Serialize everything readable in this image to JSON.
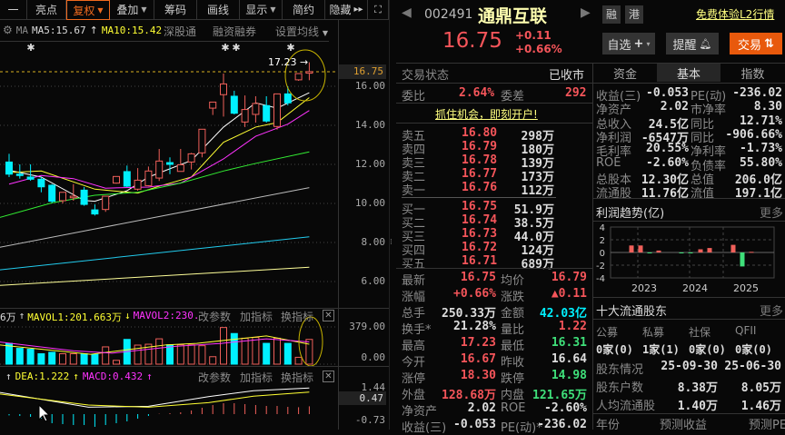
{
  "toolbar": {
    "items": [
      {
        "label": "一"
      },
      {
        "label": "亮点"
      },
      {
        "label": "复权",
        "dropdown": true,
        "selected": true
      },
      {
        "label": "叠加",
        "dropdown": true
      },
      {
        "label": "筹码"
      },
      {
        "label": "画线"
      },
      {
        "label": "显示",
        "dropdown": true
      },
      {
        "label": "简约"
      },
      {
        "label": "隐藏",
        "suffix": "▸▸"
      }
    ],
    "fullscreen_icon": "expand-icon"
  },
  "ma_bar": {
    "ma_label": "MA",
    "ma5": "MA5:15.67",
    "ma5_arrow": "↑",
    "ma10": "MA10:15.42",
    "links": [
      "深股通",
      "融资融券",
      "设置均线"
    ]
  },
  "price_chart": {
    "high_marker": "17.23",
    "current_price_tag": "16.75",
    "axis_ticks": [
      "16.00",
      "14.00",
      "12.00",
      "10.00",
      "8.00",
      "6.00"
    ]
  },
  "volume_panel": {
    "left_label": "6万",
    "arrow1": "↑",
    "mavol1": "MAVOL1:201.663万",
    "arrow2": "↓",
    "mavol2": "MAVOL2:230.",
    "actions": [
      "改参数",
      "加指标",
      "换指标"
    ],
    "axis_ticks": [
      "379.00",
      "0.00"
    ]
  },
  "macd_panel": {
    "arrow0": "↑",
    "dea": "DEA:1.222",
    "arrow1": "↑",
    "macd": "MACD:0.432",
    "arrow2": "↑",
    "actions": [
      "改参数",
      "加指标",
      "换指标"
    ],
    "axis_ticks": [
      "1.44",
      "0.47",
      "-0.73"
    ]
  },
  "chart_data": {
    "type": "candlestick",
    "candles": [
      [
        12.12,
        12.54,
        11.35,
        11.5
      ],
      [
        11.5,
        12.0,
        11.27,
        11.43
      ],
      [
        11.35,
        12.0,
        11.16,
        11.24
      ],
      [
        11.24,
        11.35,
        10.57,
        10.85
      ],
      [
        10.93,
        10.99,
        10.03,
        10.11
      ],
      [
        10.14,
        10.57,
        10.0,
        10.57
      ],
      [
        10.29,
        10.99,
        10.14,
        10.37
      ],
      [
        10.68,
        10.84,
        9.88,
        9.95
      ],
      [
        9.67,
        9.95,
        9.38,
        9.46
      ],
      [
        9.69,
        10.37,
        9.57,
        10.37
      ],
      [
        11.04,
        11.38,
        11.01,
        11.38
      ],
      [
        11.63,
        11.94,
        10.84,
        10.88
      ],
      [
        10.73,
        11.81,
        10.65,
        11.19
      ],
      [
        10.91,
        11.89,
        10.88,
        11.66
      ],
      [
        11.3,
        12.79,
        11.15,
        12.17
      ],
      [
        12.09,
        12.36,
        11.5,
        12.0
      ],
      [
        11.64,
        12.79,
        11.64,
        11.98
      ],
      [
        12.12,
        12.59,
        11.74,
        12.54
      ],
      [
        12.59,
        13.8,
        12.36,
        13.8
      ],
      [
        14.88,
        15.19,
        14.53,
        15.19
      ],
      [
        15.57,
        16.65,
        14.45,
        16.12
      ],
      [
        15.49,
        15.77,
        14.56,
        14.62
      ],
      [
        14.17,
        15.53,
        13.91,
        14.81
      ],
      [
        14.56,
        15.49,
        14.14,
        15.12
      ],
      [
        15.01,
        15.49,
        14.14,
        14.22
      ],
      [
        13.94,
        15.61,
        13.78,
        15.61
      ],
      [
        15.61,
        16.0,
        15.02,
        15.15
      ],
      [
        16.33,
        16.65,
        16.28,
        16.65
      ],
      [
        16.67,
        17.23,
        16.31,
        16.75
      ]
    ],
    "candle_fields": [
      "open",
      "high",
      "low",
      "close"
    ],
    "ma_lines": [
      {
        "name": "MA5",
        "color": "#ffffff",
        "points": [
          [
            1,
            11.7
          ],
          [
            4,
            11.35
          ],
          [
            8,
            10.15
          ],
          [
            9,
            10.11
          ],
          [
            12,
            10.65
          ],
          [
            14,
            11.35
          ],
          [
            18,
            12.2
          ],
          [
            21,
            13.91
          ],
          [
            24,
            15.15
          ],
          [
            26,
            14.88
          ],
          [
            29,
            15.67
          ]
        ]
      },
      {
        "name": "MA10",
        "color": "#ffff33",
        "points": [
          [
            1,
            11.58
          ],
          [
            4,
            11.66
          ],
          [
            9,
            10.73
          ],
          [
            13,
            10.53
          ],
          [
            15,
            10.88
          ],
          [
            18,
            11.35
          ],
          [
            21,
            13.13
          ],
          [
            24,
            13.91
          ],
          [
            26,
            14.14
          ],
          [
            29,
            15.42
          ]
        ]
      },
      {
        "color": "#ff33ff",
        "points": [
          [
            1,
            10.99
          ],
          [
            4,
            11.43
          ],
          [
            7,
            11.27
          ],
          [
            10,
            10.78
          ],
          [
            14,
            10.84
          ],
          [
            17,
            11.04
          ],
          [
            21,
            12.28
          ],
          [
            24,
            13.44
          ],
          [
            27,
            14.06
          ],
          [
            29,
            14.76
          ]
        ]
      },
      {
        "color": "#33ee33",
        "points": [
          [
            0,
            9.26
          ],
          [
            5,
            10.03
          ],
          [
            9,
            10.42
          ],
          [
            13,
            10.57
          ],
          [
            17,
            11.04
          ],
          [
            21,
            11.66
          ],
          [
            24,
            12.05
          ],
          [
            29,
            12.64
          ]
        ]
      },
      {
        "color": "#bbbbbb",
        "points": [
          [
            0,
            7.74
          ],
          [
            29,
            10.81
          ]
        ]
      },
      {
        "color": "#22ccee",
        "points": [
          [
            0,
            6.59
          ],
          [
            29,
            8.29
          ]
        ]
      },
      {
        "color": "#ffff99",
        "points": [
          [
            0,
            5.8
          ],
          [
            29,
            6.73
          ]
        ]
      }
    ],
    "ylim": [
      5.6,
      17.6
    ],
    "volume": [
      212,
      161,
      152,
      106,
      121,
      106,
      106,
      106,
      100,
      176,
      39,
      252,
      194,
      203,
      258,
      197,
      197,
      197,
      188,
      76,
      373,
      312,
      264,
      273,
      212,
      264,
      212,
      70,
      252
    ],
    "volume_ylim": [
      0,
      379
    ],
    "mavol1": [
      [
        0,
        197
      ],
      [
        8.6,
        100
      ],
      [
        15.7,
        197
      ],
      [
        18.5,
        212
      ],
      [
        25,
        288
      ],
      [
        29,
        203
      ]
    ],
    "mavol2": [
      [
        0,
        227
      ],
      [
        7,
        136
      ],
      [
        10.6,
        112
      ],
      [
        16.6,
        182
      ],
      [
        20.8,
        212
      ],
      [
        25,
        258
      ],
      [
        29,
        227
      ]
    ],
    "dif": [
      [
        0,
        1.21
      ],
      [
        8.4,
        0.38
      ],
      [
        14,
        0.43
      ],
      [
        19.6,
        0.96
      ],
      [
        23.8,
        1.29
      ],
      [
        29,
        1.44
      ]
    ],
    "dea": [
      [
        0,
        1.12
      ],
      [
        8.4,
        0.5
      ],
      [
        14,
        0.38
      ],
      [
        19.6,
        0.63
      ],
      [
        23.8,
        0.99
      ],
      [
        29,
        1.21
      ]
    ],
    "macd_hist": [
      -0.07,
      -0.1,
      -0.15,
      -0.25,
      -0.5,
      -0.55,
      -0.6,
      -0.6,
      -0.7,
      -0.6,
      -0.5,
      -0.4,
      -0.25,
      -0.1,
      0.02,
      0.05,
      0.1,
      0.2,
      0.35,
      0.5,
      0.6,
      0.6,
      0.55,
      0.5,
      0.45,
      0.45,
      0.4,
      0.38,
      0.43
    ]
  },
  "quote": {
    "code": "002491",
    "name": "通鼎互联",
    "tags": [
      "融",
      "港"
    ],
    "l2_link": "免费体验L2行情",
    "price": "16.75",
    "change": "+0.11",
    "change_pct": "+0.66%",
    "buttons": {
      "watchlist": "自选",
      "alert": "提醒",
      "trade": "交易"
    },
    "trade_color": "#e8590c"
  },
  "status": {
    "label": "交易状态",
    "value": "已收市"
  },
  "tabs": [
    {
      "label": "资金"
    },
    {
      "label": "基本",
      "active": true
    },
    {
      "label": "指数"
    }
  ],
  "order_book": {
    "wb_label": "委比",
    "wb": "2.64%",
    "wc_label": "委差",
    "wc": "292",
    "promo": "抓住机会，即刻开户!",
    "asks": [
      {
        "label": "卖五",
        "price": "16.80",
        "vol": "298万"
      },
      {
        "label": "卖四",
        "price": "16.79",
        "vol": "180万"
      },
      {
        "label": "卖三",
        "price": "16.78",
        "vol": "139万"
      },
      {
        "label": "卖二",
        "price": "16.77",
        "vol": "173万"
      },
      {
        "label": "卖一",
        "price": "16.76",
        "vol": "112万"
      }
    ],
    "bids": [
      {
        "label": "买一",
        "price": "16.75",
        "vol": "51.9万"
      },
      {
        "label": "买二",
        "price": "16.74",
        "vol": "38.5万"
      },
      {
        "label": "买三",
        "price": "16.73",
        "vol": "44.0万"
      },
      {
        "label": "买四",
        "price": "16.72",
        "vol": "124万"
      },
      {
        "label": "买五",
        "price": "16.71",
        "vol": "689万"
      }
    ]
  },
  "stats": [
    {
      "l1": "最新",
      "v1": "16.75",
      "c1": "red",
      "l2": "均价",
      "v2": "16.79",
      "c2": "red"
    },
    {
      "l1": "涨幅",
      "v1": "+0.66%",
      "c1": "red",
      "l2": "涨跌",
      "v2": "▲0.11",
      "c2": "red"
    },
    {
      "l1": "总手",
      "v1": "250.33万",
      "c1": "wh",
      "l2": "金额",
      "v2": "42.03亿",
      "c2": "cy"
    },
    {
      "l1": "换手*",
      "v1": "21.28%",
      "c1": "wh",
      "l2": "量比",
      "v2": "1.22",
      "c2": "red"
    },
    {
      "l1": "最高",
      "v1": "17.23",
      "c1": "red",
      "l2": "最低",
      "v2": "16.31",
      "c2": "gr"
    },
    {
      "l1": "今开",
      "v1": "16.67",
      "c1": "red",
      "l2": "昨收",
      "v2": "16.64",
      "c2": "wh"
    },
    {
      "l1": "涨停",
      "v1": "18.30",
      "c1": "red",
      "l2": "跌停",
      "v2": "14.98",
      "c2": "gr"
    },
    {
      "l1": "外盘",
      "v1": "128.68万",
      "c1": "red",
      "l2": "内盘",
      "v2": "121.65万",
      "c2": "gr"
    },
    {
      "l1": "净资产",
      "v1": "2.02",
      "c1": "wh",
      "l2": "ROE",
      "v2": "-2.60%",
      "c2": "wh"
    },
    {
      "l1": "收益(三)",
      "v1": "-0.053",
      "c1": "wh",
      "l2": "PE(动)*",
      "v2": "-236.02",
      "c2": "wh"
    }
  ],
  "fundamentals": [
    {
      "l1": "收益(三)",
      "v1": "-0.053",
      "l2": "PE(动)",
      "v2": "-236.02"
    },
    {
      "l1": "净资产",
      "v1": "2.02",
      "l2": "市净率",
      "v2": "8.30"
    },
    {
      "l1": "总收入",
      "v1": "24.5亿",
      "l2": "同比",
      "v2": "12.71%"
    },
    {
      "l1": "净利润",
      "v1": "-6547万",
      "l2": "同比",
      "v2": "-906.66%"
    },
    {
      "l1": "毛利率",
      "v1": "20.55%",
      "l2": "净利率",
      "v2": "-1.73%"
    },
    {
      "l1": "ROE",
      "v1": "-2.60%",
      "l2": "负债率",
      "v2": "55.80%"
    },
    {
      "l1": "总股本",
      "v1": "12.30亿",
      "l2": "总值",
      "v2": "206.0亿"
    },
    {
      "l1": "流通股",
      "v1": "11.76亿",
      "l2": "流值",
      "v2": "197.1亿"
    }
  ],
  "profit_trend": {
    "title": "利润趋势(亿)",
    "more": "更多",
    "y_ticks": [
      "4",
      "2",
      "0",
      "-2",
      "-4"
    ],
    "years": [
      "2023",
      "2024",
      "2025"
    ],
    "chart_data": {
      "type": "bar",
      "ylim": [
        -4,
        4
      ],
      "values": [
        1.1,
        1.1,
        -0.1,
        0.3,
        -0.1,
        -0.1,
        0.5,
        0.7,
        1.2,
        -2.2,
        0.1
      ]
    }
  },
  "holders": {
    "title": "十大流通股东",
    "more": "更多",
    "categories": [
      {
        "label": "公募",
        "value": "0家(0)"
      },
      {
        "label": "私募",
        "value": "1家(1)"
      },
      {
        "label": "社保",
        "value": "0家(0)"
      },
      {
        "label": "QFII",
        "value": "0家(0)"
      }
    ],
    "rows": [
      {
        "label": "股东情况",
        "a": "25-09-30",
        "b": "25-06-30"
      },
      {
        "label": "股东户数",
        "a": "8.38万",
        "b": "8.05万"
      },
      {
        "label": "人均流通股",
        "a": "1.40万",
        "b": "1.46万"
      }
    ],
    "footer": [
      "年份",
      "预测收益",
      "预测PE"
    ]
  }
}
